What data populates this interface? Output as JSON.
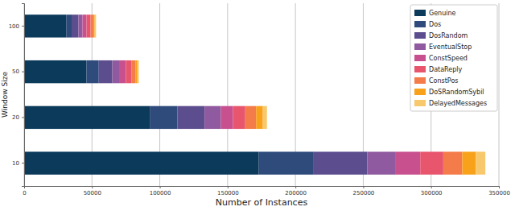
{
  "chart_data": {
    "type": "bar",
    "orientation": "horizontal",
    "stacked": true,
    "grid": true,
    "legend": "upper right",
    "x_label": "Number of Instances",
    "y_label": "Window Size",
    "categories": [
      "10",
      "20",
      "50",
      "100"
    ],
    "xlim": [
      0,
      350000
    ],
    "xticks": [
      0,
      50000,
      100000,
      150000,
      200000,
      250000,
      300000,
      350000
    ],
    "series": [
      {
        "name": "Genuine",
        "color": "#0c3a5b",
        "values": [
          173000,
          93000,
          46000,
          31000
        ]
      },
      {
        "name": "Dos",
        "color": "#2f4b7c",
        "values": [
          40000,
          20000,
          9000,
          4000
        ]
      },
      {
        "name": "DosRandom",
        "color": "#5c4d8e",
        "values": [
          40000,
          20000,
          10000,
          5000
        ]
      },
      {
        "name": "EventualStop",
        "color": "#8f5a9f",
        "values": [
          21000,
          12000,
          5000,
          3000
        ]
      },
      {
        "name": "ConstSpeed",
        "color": "#c8508f",
        "values": [
          18000,
          9000,
          5000,
          3000
        ]
      },
      {
        "name": "DataReply",
        "color": "#e8566e",
        "values": [
          17000,
          9000,
          4000,
          3000
        ]
      },
      {
        "name": "ConstPos",
        "color": "#f47b4a",
        "values": [
          14000,
          8000,
          3000,
          2000
        ]
      },
      {
        "name": "DoSRandomSybil",
        "color": "#f8a21c",
        "values": [
          10000,
          5000,
          1500,
          1000
        ]
      },
      {
        "name": "DelayedMessages",
        "color": "#f8c86c",
        "values": [
          7000,
          3000,
          1000,
          1000
        ]
      }
    ]
  }
}
